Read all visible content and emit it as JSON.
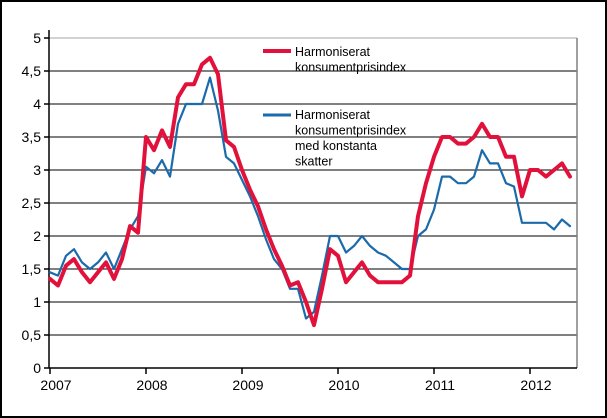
{
  "figure": {
    "background": "#ffffff",
    "border_color": "#000000",
    "grid_color": "#000000",
    "top_grid_color": "#a6a6a6",
    "right_border_color": "#808080"
  },
  "y_axis": {
    "min": 0,
    "max": 5,
    "step": 0.5,
    "tick_labels": [
      "0",
      "0,5",
      "1",
      "1,5",
      "2",
      "2,5",
      "3",
      "3,5",
      "4",
      "4,5",
      "5"
    ]
  },
  "x_axis": {
    "year_labels": [
      "2007",
      "2008",
      "2009",
      "2010",
      "2011",
      "2012"
    ]
  },
  "legend": {
    "items": [
      {
        "color": "#e2113c",
        "line_width": 4,
        "label_lines": [
          "Harmoniserat",
          "konsumentprisindex"
        ]
      },
      {
        "color": "#1b6aaa",
        "line_width": 3,
        "label_lines": [
          "Harmoniserat",
          "konsumentprisindex",
          "med konstanta",
          "skatter"
        ]
      }
    ]
  },
  "chart_data": {
    "type": "line",
    "frequency": "monthly",
    "x_start": "2007-01",
    "x_end": "2012-06",
    "title": "",
    "xlabel": "",
    "ylabel": "",
    "ylim": [
      0,
      5
    ],
    "grid": true,
    "legend_position": "top-center",
    "categories_years": [
      "2007",
      "2008",
      "2009",
      "2010",
      "2011",
      "2012"
    ],
    "series": [
      {
        "name": "Harmoniserat konsumentprisindex",
        "color": "#e2113c",
        "stroke_width": 4,
        "values": [
          1.35,
          1.25,
          1.55,
          1.65,
          1.45,
          1.3,
          1.45,
          1.6,
          1.35,
          1.65,
          2.15,
          2.05,
          3.5,
          3.3,
          3.6,
          3.35,
          4.1,
          4.3,
          4.3,
          4.6,
          4.7,
          4.45,
          3.45,
          3.35,
          3.0,
          2.7,
          2.45,
          2.1,
          1.8,
          1.55,
          1.25,
          1.3,
          1.0,
          0.65,
          1.2,
          1.8,
          1.7,
          1.3,
          1.45,
          1.6,
          1.4,
          1.3,
          1.3,
          1.3,
          1.3,
          1.4,
          2.3,
          2.8,
          3.2,
          3.5,
          3.5,
          3.4,
          3.4,
          3.5,
          3.7,
          3.5,
          3.5,
          3.2,
          3.2,
          2.6,
          3.0,
          3.0,
          2.9,
          3.0,
          3.1,
          2.9
        ]
      },
      {
        "name": "Harmoniserat konsumentprisindex med konstanta skatter",
        "color": "#1b6aaa",
        "stroke_width": 2.2,
        "values": [
          1.45,
          1.4,
          1.7,
          1.8,
          1.6,
          1.5,
          1.6,
          1.75,
          1.5,
          1.8,
          2.1,
          2.3,
          3.05,
          2.95,
          3.15,
          2.9,
          3.7,
          4.0,
          4.0,
          4.0,
          4.4,
          3.9,
          3.2,
          3.1,
          2.85,
          2.6,
          2.3,
          1.95,
          1.65,
          1.5,
          1.2,
          1.2,
          0.75,
          0.85,
          1.4,
          2.0,
          2.0,
          1.75,
          1.85,
          2.0,
          1.85,
          1.75,
          1.7,
          1.6,
          1.5,
          1.5,
          2.0,
          2.1,
          2.4,
          2.9,
          2.9,
          2.8,
          2.8,
          2.9,
          3.3,
          3.1,
          3.1,
          2.8,
          2.75,
          2.2,
          2.2,
          2.2,
          2.2,
          2.1,
          2.25,
          2.15
        ]
      }
    ]
  }
}
